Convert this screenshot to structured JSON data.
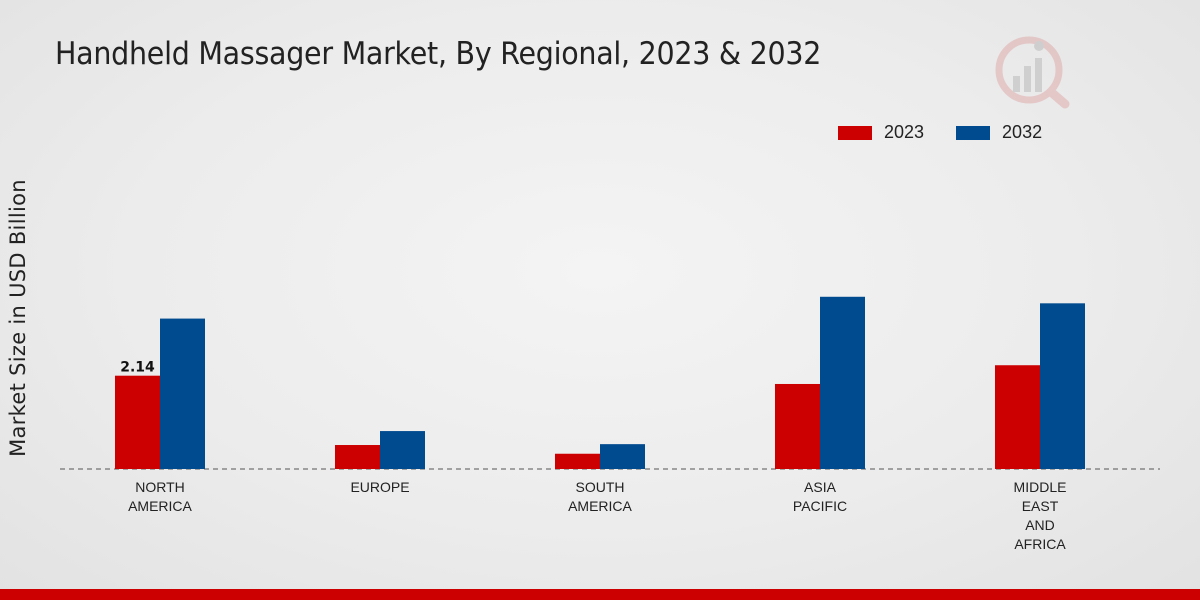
{
  "chart_data": {
    "type": "bar",
    "title": "Handheld Massager Market, By Regional, 2023 & 2032",
    "xlabel": "",
    "ylabel": "Market Size in USD Billion",
    "categories": [
      "NORTH\nAMERICA",
      "EUROPE",
      "SOUTH\nAMERICA",
      "ASIA\nPACIFIC",
      "MIDDLE\nEAST\nAND\nAFRICA"
    ],
    "series": [
      {
        "name": "2023",
        "color": "#cc0000",
        "values": [
          2.14,
          0.55,
          0.35,
          1.95,
          2.38
        ]
      },
      {
        "name": "2032",
        "color": "#004a8f",
        "values": [
          3.45,
          0.87,
          0.57,
          3.95,
          3.8
        ]
      }
    ],
    "data_labels": [
      {
        "series": 0,
        "index": 0,
        "text": "2.14"
      }
    ],
    "ylim": [
      0,
      5
    ],
    "grid": false,
    "legend_position": "top-right"
  }
}
